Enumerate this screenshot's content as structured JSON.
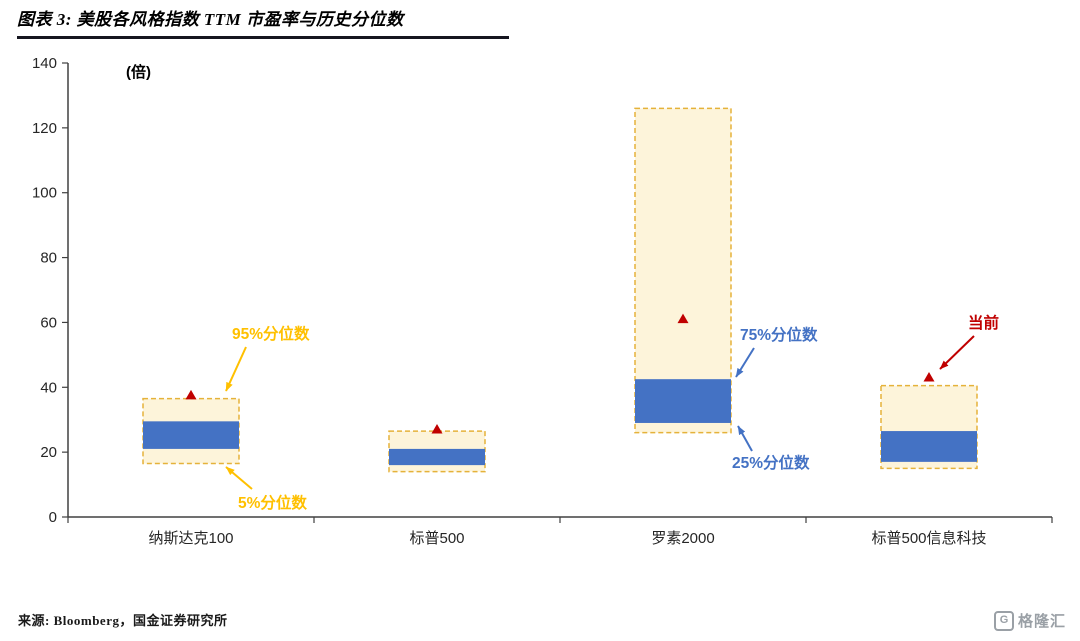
{
  "header": {
    "title": "图表 3: 美股各风格指数 TTM 市盈率与历史分位数"
  },
  "chart_data": {
    "type": "box",
    "title": "美股各风格指数TTM市盈率与历史分位数",
    "unit_label": "(倍)",
    "categories": [
      "纳斯达克100",
      "标普500",
      "罗素2000",
      "标普500信息科技"
    ],
    "series": [
      {
        "name": "5%分位数",
        "values": [
          16.5,
          14,
          26,
          15
        ]
      },
      {
        "name": "25%分位数",
        "values": [
          21,
          16,
          29,
          17
        ]
      },
      {
        "name": "75%分位数",
        "values": [
          29.5,
          21,
          42.5,
          26.5
        ]
      },
      {
        "name": "95%分位数",
        "values": [
          36.5,
          26.5,
          126,
          40.5
        ]
      },
      {
        "name": "当前",
        "values": [
          37.5,
          27,
          61,
          43
        ]
      }
    ],
    "ylim": [
      0,
      140
    ],
    "ytick_step": 20,
    "grid": false,
    "legend_position": "none",
    "colors": {
      "band_fill": "#FDF4DA",
      "band_border": "#E5B23A",
      "iqr_fill": "#4472C4",
      "current": "#C00000",
      "axis": "#404040"
    },
    "annotations": [
      {
        "label": "95%分位数",
        "color": "#FFC000"
      },
      {
        "label": "5%分位数",
        "color": "#FFC000"
      },
      {
        "label": "75%分位数",
        "color": "#4472C4"
      },
      {
        "label": "25%分位数",
        "color": "#4472C4"
      },
      {
        "label": "当前",
        "color": "#C00000"
      }
    ]
  },
  "footer": {
    "source": "来源: Bloomberg，国金证券研究所"
  },
  "logo": {
    "glyph": "G",
    "text": "格隆汇"
  }
}
